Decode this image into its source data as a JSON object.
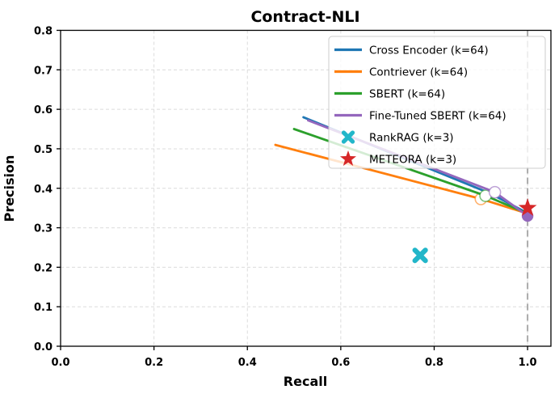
{
  "chart_data": {
    "type": "line",
    "title": "Contract-NLI",
    "xlabel": "Recall",
    "ylabel": "Precision",
    "xlim": [
      0.0,
      1.05
    ],
    "ylim": [
      0.0,
      0.8
    ],
    "xtick_values": [
      0.0,
      0.2,
      0.4,
      0.6,
      0.8,
      1.0
    ],
    "xtick_labels": [
      "0.0",
      "0.2",
      "0.4",
      "0.6",
      "0.8",
      "1.0"
    ],
    "ytick_values": [
      0.0,
      0.1,
      0.2,
      0.3,
      0.4,
      0.5,
      0.6,
      0.7,
      0.8
    ],
    "ytick_labels": [
      "0.0",
      "0.1",
      "0.2",
      "0.3",
      "0.4",
      "0.5",
      "0.6",
      "0.7",
      "0.8"
    ],
    "grid": true,
    "grid_style": "dashed",
    "grid_color": "#dcdcdc",
    "spine_color": "#000000",
    "background_color": "#ffffff",
    "legend_position": "upper right",
    "reference_line": {
      "axis": "x",
      "value": 1.0,
      "style": "dashed",
      "color": "#ababab"
    },
    "series": [
      {
        "name": "Cross Encoder (k=64)",
        "type": "line",
        "color": "#1f77b4",
        "points": [
          [
            0.52,
            0.58
          ],
          [
            0.92,
            0.387
          ],
          [
            1.0,
            0.337
          ]
        ],
        "open_markers": [],
        "filled_markers": []
      },
      {
        "name": "Contriever (k=64)",
        "type": "line",
        "color": "#ff7f0e",
        "points": [
          [
            0.46,
            0.51
          ],
          [
            0.9,
            0.373
          ],
          [
            1.0,
            0.336
          ]
        ],
        "open_markers": [
          [
            0.9,
            0.373
          ]
        ],
        "filled_markers": []
      },
      {
        "name": "SBERT (k=64)",
        "type": "line",
        "color": "#2ca02c",
        "points": [
          [
            0.5,
            0.55
          ],
          [
            0.91,
            0.381
          ],
          [
            1.0,
            0.336
          ]
        ],
        "open_markers": [
          [
            0.91,
            0.381
          ]
        ],
        "filled_markers": []
      },
      {
        "name": "Fine-Tuned SBERT (k=64)",
        "type": "line",
        "color": "#9467bd",
        "points": [
          [
            0.53,
            0.572
          ],
          [
            0.93,
            0.39
          ],
          [
            1.0,
            0.33
          ]
        ],
        "open_markers": [
          [
            0.93,
            0.39
          ]
        ],
        "filled_markers": [
          [
            1.0,
            0.33
          ]
        ]
      },
      {
        "name": "RankRAG (k=3)",
        "type": "scatter",
        "marker": "x",
        "color": "#22b6c9",
        "points": [
          [
            0.77,
            0.23
          ]
        ]
      },
      {
        "name": "METEORA (k=3)",
        "type": "scatter",
        "marker": "star",
        "color": "#d62728",
        "points": [
          [
            1.0,
            0.35
          ]
        ]
      }
    ]
  }
}
